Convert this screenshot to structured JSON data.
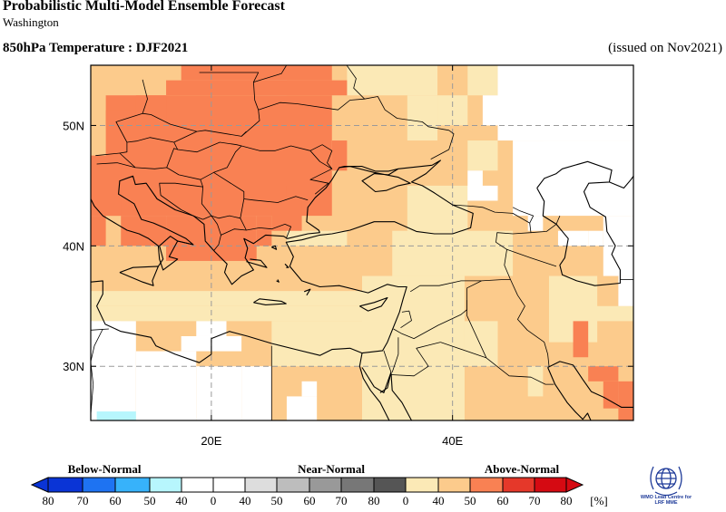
{
  "header": {
    "title": "Probabilistic Multi-Model Ensemble Forecast",
    "subtitle": "Washington",
    "variable": "850hPa Temperature : DJF2021",
    "issued": "(issued on Nov2021)"
  },
  "map": {
    "lon_range": [
      10,
      55
    ],
    "lat_range": [
      25,
      55
    ],
    "lat_ticks": [
      "30N",
      "40N",
      "50N"
    ],
    "lon_ticks": [
      "20E",
      "40E"
    ],
    "grid": true,
    "category_colors": {
      "above_40_50": "#fbe9b6",
      "above_50_60": "#fccb8c",
      "above_60_70": "#f98153",
      "above_70_80": "#e5382a",
      "below_40_50": "#b7f6fd",
      "none": "#ffffff"
    }
  },
  "legend": {
    "categories": [
      {
        "label": "Below-Normal",
        "center": 115
      },
      {
        "label": "Near-Normal",
        "center": 365
      },
      {
        "label": "Above-Normal",
        "center": 575
      }
    ],
    "tick_labels": [
      "80",
      "70",
      "60",
      "50",
      "40",
      "0",
      "40",
      "50",
      "60",
      "70",
      "80",
      "0",
      "40",
      "50",
      "60",
      "70",
      "80",
      "[%]"
    ],
    "colors": {
      "below": [
        "#0a34d6",
        "#1e73f2",
        "#37b2fa",
        "#b7f6fd"
      ],
      "near": [
        "#dddddd",
        "#bdbdbd",
        "#999999",
        "#777777",
        "#555555"
      ],
      "above": [
        "#fbe9b6",
        "#fccb8c",
        "#f98153",
        "#e5382a",
        "#d50a12"
      ]
    }
  },
  "logo": {
    "line1": "WMO Lead Centre for",
    "line2": "LRF MME"
  }
}
